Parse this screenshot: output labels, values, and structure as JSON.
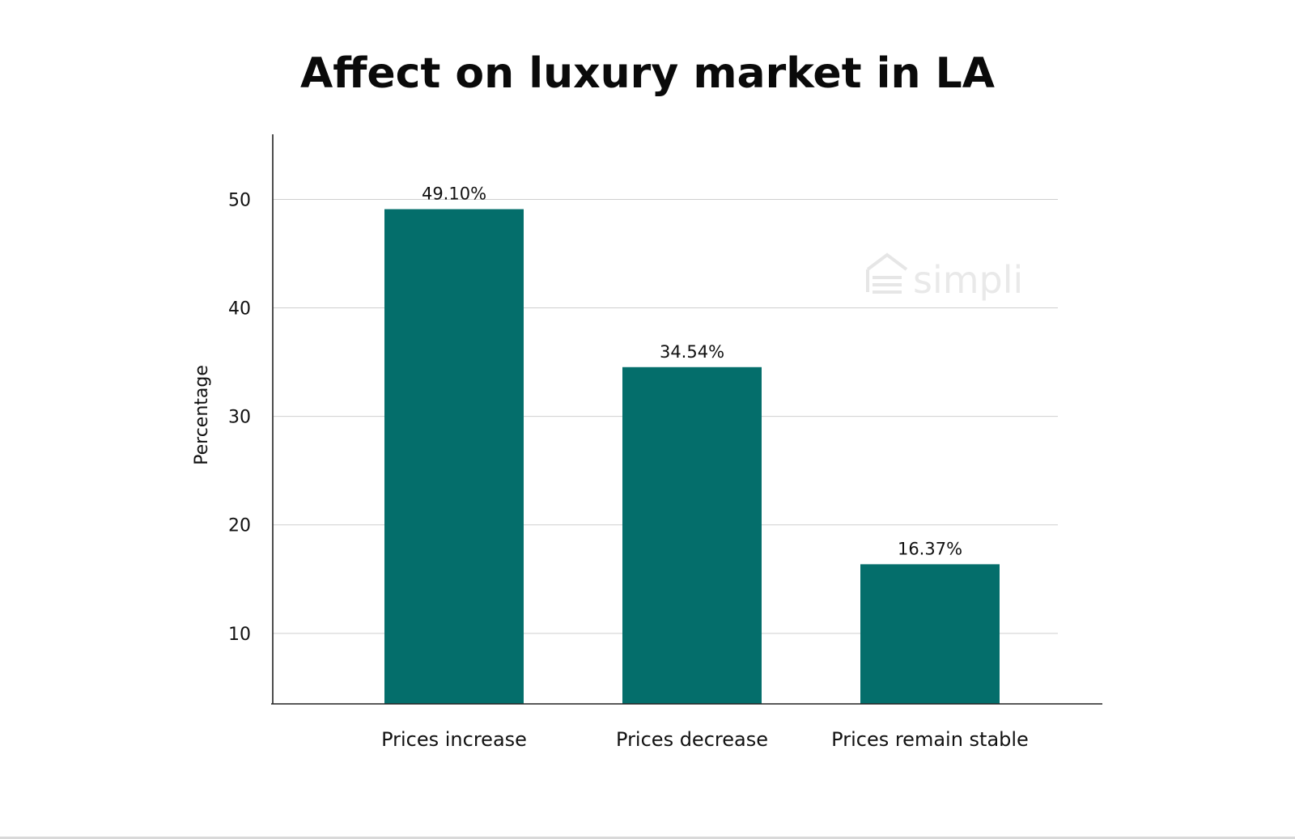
{
  "chart_data": {
    "type": "bar",
    "title": "Affect on luxury market in LA",
    "xlabel": "",
    "ylabel": "Percentage",
    "categories": [
      "Prices increase",
      "Prices decrease",
      "Prices remain stable"
    ],
    "values": [
      49.1,
      34.54,
      16.37
    ],
    "data_labels": [
      "49.10%",
      "34.54%",
      "16.37%"
    ],
    "yticks": [
      10,
      20,
      30,
      40,
      50
    ],
    "ylim": [
      3.5,
      56
    ],
    "grid": true,
    "legend": "none",
    "bar_color": "#046e6b"
  },
  "watermark": {
    "text": "simpli",
    "icon": "house-lines-icon"
  }
}
